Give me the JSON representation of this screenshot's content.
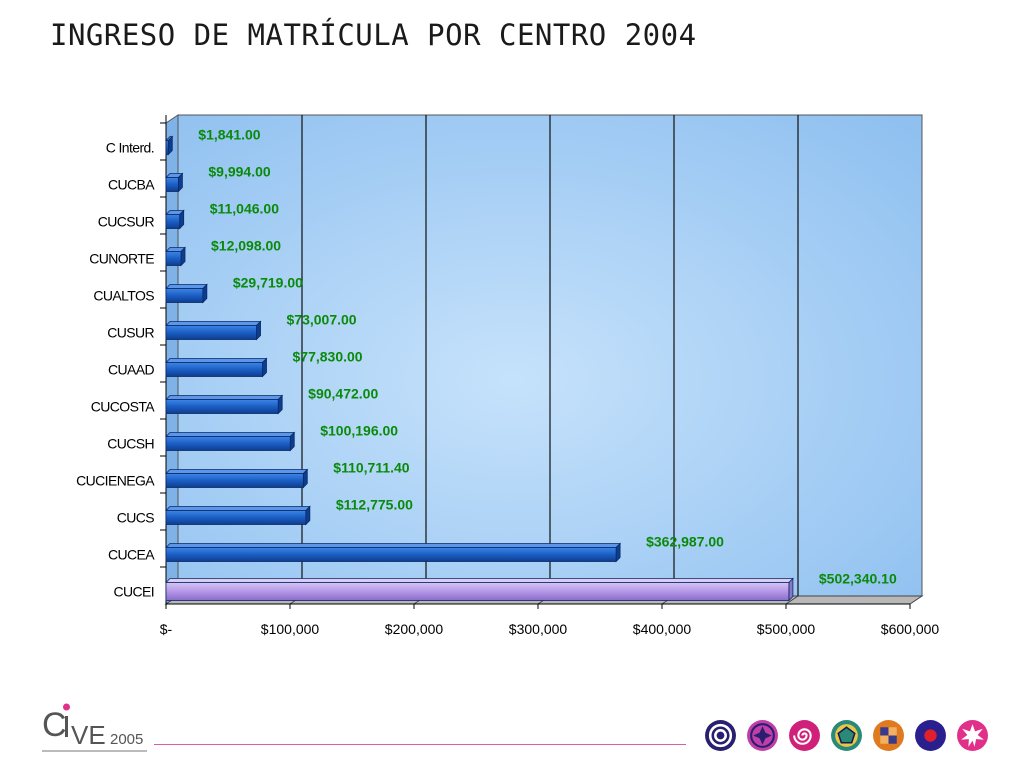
{
  "title": "INGRESO DE MATRÍCULA POR CENTRO 2004",
  "chart_data": {
    "type": "bar",
    "orientation": "horizontal",
    "title": "",
    "xlabel": "",
    "ylabel": "",
    "categories": [
      "C Interd.",
      "CUCBA",
      "CUCSUR",
      "CUNORTE",
      "CUALTOS",
      "CUSUR",
      "CUAAD",
      "CUCOSTA",
      "CUCSH",
      "CUCIENEGA",
      "CUCS",
      "CUCEA",
      "CUCEI"
    ],
    "values": [
      1841.0,
      9994.0,
      11046.0,
      12098.0,
      29719.0,
      73007.0,
      77830.0,
      90472.0,
      100196.0,
      110711.4,
      112775.0,
      362987.0,
      502340.1
    ],
    "data_labels": [
      "$1,841.00",
      "$9,994.00",
      "$11,046.00",
      "$12,098.00",
      "$29,719.00",
      "$73,007.00",
      "$77,830.00",
      "$90,472.00",
      "$100,196.00",
      "$110,711.40",
      "$112,775.00",
      "$362,987.00",
      "$502,340.10"
    ],
    "xlim": [
      0,
      600000
    ],
    "xticks": [
      0,
      100000,
      200000,
      300000,
      400000,
      500000,
      600000
    ],
    "xtick_labels": [
      "$-",
      "$100,000",
      "$200,000",
      "$300,000",
      "$400,000",
      "$500,000",
      "$600,000"
    ],
    "grid": true,
    "legend": "none",
    "colors": {
      "bar": "#1c5fc4",
      "highlight_bar": "#b497e6",
      "plot_background": "#9cc8f2",
      "data_label": "#0a8a0a"
    },
    "highlight_category": "CUCEI"
  },
  "footer": {
    "logo_text": "CIVE",
    "logo_year": "2005",
    "icons": [
      "spiral-target-icon",
      "cross-diamond-icon",
      "swirl-icon",
      "pentagon-icon",
      "checker-icon",
      "red-dot-icon",
      "star-burst-icon"
    ]
  }
}
